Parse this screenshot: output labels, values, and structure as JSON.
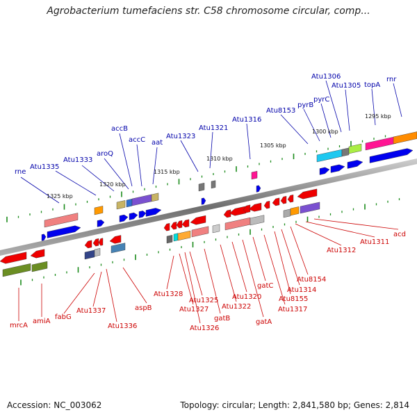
{
  "title": "Agrobacterium tumefaciens str. C58 chromosome circular, comp...",
  "footer": {
    "accession": "Accession: NC_003062",
    "summary": "Topology: circular; Length: 2,841,580 bp; Genes: 2,814"
  },
  "colors": {
    "top_label": "#0000aa",
    "bottom_label": "#cc0000",
    "tick": "#1a8a1a",
    "backbone": "#777777"
  },
  "kbp_ticks": [
    "1325 kbp",
    "1320 kbp",
    "1315 kbp",
    "1310 kbp",
    "1305 kbp",
    "1300 kbp",
    "1295 kbp"
  ],
  "top_labels": [
    "rne",
    "Atu1335",
    "Atu1333",
    "aroQ",
    "accB",
    "accC",
    "aat",
    "Atu1323",
    "Atu1321",
    "Atu1316",
    "Atu8153",
    "pyrB",
    "pyrC",
    "Atu1306",
    "Atu1305",
    "topA",
    "rnr"
  ],
  "bottom_labels": [
    "mrcA",
    "amiA",
    "fabG",
    "Atu1337",
    "Atu1336",
    "aspB",
    "Atu1328",
    "Atu1327",
    "Atu1326",
    "Atu1325",
    "gatB",
    "Atu1322",
    "Atu1320",
    "gatA",
    "gatC",
    "Atu1317",
    "Atu8155",
    "Atu1314",
    "Atu8154",
    "Atu1312",
    "Atu1311",
    "acd"
  ]
}
